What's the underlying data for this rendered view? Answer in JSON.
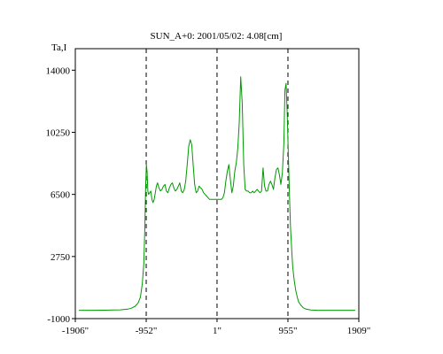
{
  "chart_data": {
    "type": "line",
    "title": "SUN_A+0: 2001/05/02: 4.08[cm]",
    "ylabel": "Ta,I",
    "xlabel": "",
    "xlim": [
      -1906,
      1909
    ],
    "ylim": [
      -1000,
      15300
    ],
    "x_ticks": [
      {
        "value": -1906,
        "label": "-1906\""
      },
      {
        "value": -952,
        "label": "-952\""
      },
      {
        "value": 1,
        "label": "1\""
      },
      {
        "value": 955,
        "label": "955\""
      },
      {
        "value": 1909,
        "label": "1909\""
      }
    ],
    "y_ticks": [
      {
        "value": 14000,
        "label": "14000"
      },
      {
        "value": 10250,
        "label": "10250"
      },
      {
        "value": 6500,
        "label": "6500"
      },
      {
        "value": 2750,
        "label": "2750"
      },
      {
        "value": -1000,
        "label": "-1000"
      }
    ],
    "vertical_markers": [
      -952,
      1,
      955
    ],
    "grid": false,
    "colors": {
      "series": "#009900",
      "axes": "#000000",
      "markers": "#000000"
    },
    "series": [
      {
        "x": [
          -1860,
          -1700,
          -1500,
          -1300,
          -1200,
          -1150,
          -1100,
          -1060,
          -1030,
          -1005,
          -985,
          -970,
          -960,
          -950,
          -940,
          -930,
          -920,
          -905,
          -890,
          -875,
          -860,
          -845,
          -830,
          -815,
          -800,
          -780,
          -760,
          -740,
          -720,
          -700,
          -680,
          -660,
          -640,
          -620,
          -600,
          -580,
          -560,
          -540,
          -520,
          -500,
          -480,
          -460,
          -440,
          -420,
          -400,
          -380,
          -360,
          -340,
          -320,
          -300,
          -280,
          -260,
          -240,
          -220,
          -200,
          -180,
          -160,
          -140,
          -120,
          -100,
          -80,
          -60,
          -40,
          -20,
          0,
          20,
          40,
          60,
          80,
          100,
          120,
          140,
          160,
          180,
          200,
          220,
          240,
          260,
          280,
          300,
          320,
          340,
          360,
          380,
          400,
          420,
          440,
          460,
          480,
          500,
          520,
          540,
          560,
          580,
          600,
          620,
          640,
          660,
          680,
          700,
          720,
          740,
          760,
          780,
          800,
          820,
          840,
          860,
          880,
          900,
          915,
          930,
          945,
          960,
          975,
          990,
          1005,
          1020,
          1040,
          1060,
          1080,
          1100,
          1130,
          1160,
          1200,
          1260,
          1350,
          1500,
          1700,
          1860
        ],
        "y": [
          -500,
          -500,
          -490,
          -470,
          -430,
          -370,
          -250,
          -50,
          300,
          1100,
          2300,
          4500,
          6800,
          8300,
          7900,
          6700,
          6500,
          6600,
          6700,
          6200,
          6000,
          6200,
          6600,
          7000,
          7200,
          6900,
          6700,
          6800,
          7000,
          7100,
          6700,
          6600,
          6900,
          7100,
          7200,
          6900,
          6700,
          6800,
          7000,
          7200,
          6700,
          6600,
          6800,
          7300,
          8300,
          9400,
          9800,
          9500,
          8300,
          7100,
          6600,
          6700,
          7000,
          6900,
          6800,
          6600,
          6500,
          6400,
          6300,
          6200,
          6200,
          6200,
          6200,
          6200,
          6200,
          6200,
          6200,
          6200,
          6300,
          6600,
          7300,
          7900,
          8300,
          7400,
          6600,
          7000,
          7900,
          8400,
          9300,
          10800,
          13600,
          12000,
          8300,
          6800,
          6700,
          6700,
          6600,
          6600,
          6700,
          6600,
          6700,
          6800,
          6700,
          6600,
          6700,
          8100,
          7000,
          6700,
          6700,
          7100,
          7300,
          7100,
          6800,
          7500,
          8000,
          8100,
          7700,
          7100,
          7800,
          9600,
          12800,
          13200,
          11500,
          9000,
          6500,
          4500,
          3200,
          2100,
          1300,
          700,
          300,
          0,
          -200,
          -340,
          -430,
          -480,
          -500,
          -500,
          -500,
          -500
        ]
      }
    ]
  }
}
